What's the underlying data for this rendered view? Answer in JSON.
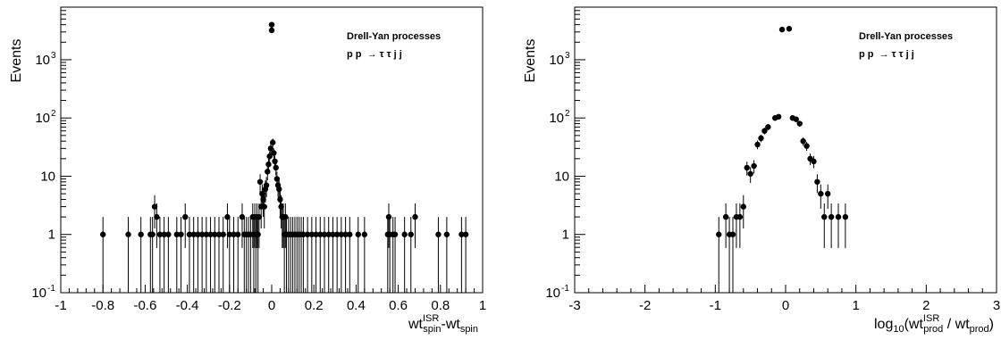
{
  "chart_data": [
    {
      "type": "scatter",
      "subtype": "histogram-with-error-bars",
      "yscale": "log",
      "ylim": [
        0.1,
        8000
      ],
      "xlim": [
        -1,
        1
      ],
      "ylabel": "Events",
      "xlabel": {
        "base": "wt",
        "sup1": "ISR",
        "sub1": "spin",
        "sep": "-wt",
        "sub2": "spin"
      },
      "legend": {
        "line1": "Drell-Yan processes",
        "line2": "p p  → τ τ j j"
      },
      "xticks": [
        {
          "value": -1,
          "label": "-1"
        },
        {
          "value": -0.8,
          "label": "-0.8"
        },
        {
          "value": -0.6,
          "label": "-0.6"
        },
        {
          "value": -0.4,
          "label": "-0.4"
        },
        {
          "value": -0.2,
          "label": "-0.2"
        },
        {
          "value": 0,
          "label": "0"
        },
        {
          "value": 0.2,
          "label": "0.2"
        },
        {
          "value": 0.4,
          "label": "0.4"
        },
        {
          "value": 0.6,
          "label": "0.6"
        },
        {
          "value": 0.8,
          "label": "0.8"
        },
        {
          "value": 1,
          "label": "1"
        }
      ],
      "yticks": [
        {
          "value": 0.1,
          "base": "10",
          "exp": "-1"
        },
        {
          "value": 1,
          "base": "1",
          "exp": ""
        },
        {
          "value": 10,
          "base": "10",
          "exp": ""
        },
        {
          "value": 100,
          "base": "10",
          "exp": "2"
        },
        {
          "value": 1000,
          "base": "10",
          "exp": "3"
        }
      ],
      "points": [
        {
          "x": -0.8,
          "y": 1
        },
        {
          "x": -0.68,
          "y": 1
        },
        {
          "x": -0.62,
          "y": 1
        },
        {
          "x": -0.575,
          "y": 1
        },
        {
          "x": -0.565,
          "y": 1
        },
        {
          "x": -0.555,
          "y": 3
        },
        {
          "x": -0.545,
          "y": 2
        },
        {
          "x": -0.53,
          "y": 1
        },
        {
          "x": -0.51,
          "y": 1
        },
        {
          "x": -0.49,
          "y": 1
        },
        {
          "x": -0.45,
          "y": 1
        },
        {
          "x": -0.43,
          "y": 1
        },
        {
          "x": -0.41,
          "y": 2
        },
        {
          "x": -0.39,
          "y": 1
        },
        {
          "x": -0.37,
          "y": 1
        },
        {
          "x": -0.35,
          "y": 1
        },
        {
          "x": -0.33,
          "y": 1
        },
        {
          "x": -0.31,
          "y": 1
        },
        {
          "x": -0.29,
          "y": 1
        },
        {
          "x": -0.27,
          "y": 1
        },
        {
          "x": -0.25,
          "y": 1
        },
        {
          "x": -0.23,
          "y": 1
        },
        {
          "x": -0.21,
          "y": 2
        },
        {
          "x": -0.2,
          "y": 1
        },
        {
          "x": -0.18,
          "y": 1
        },
        {
          "x": -0.16,
          "y": 1
        },
        {
          "x": -0.14,
          "y": 2
        },
        {
          "x": -0.13,
          "y": 1
        },
        {
          "x": -0.12,
          "y": 1
        },
        {
          "x": -0.11,
          "y": 1
        },
        {
          "x": -0.1,
          "y": 1
        },
        {
          "x": -0.09,
          "y": 2
        },
        {
          "x": -0.085,
          "y": 1
        },
        {
          "x": -0.08,
          "y": 2
        },
        {
          "x": -0.075,
          "y": 1
        },
        {
          "x": -0.07,
          "y": 2
        },
        {
          "x": -0.065,
          "y": 1
        },
        {
          "x": -0.06,
          "y": 2
        },
        {
          "x": -0.055,
          "y": 8
        },
        {
          "x": -0.05,
          "y": 3
        },
        {
          "x": -0.045,
          "y": 5
        },
        {
          "x": -0.04,
          "y": 4
        },
        {
          "x": -0.035,
          "y": 3
        },
        {
          "x": -0.03,
          "y": 6
        },
        {
          "x": -0.025,
          "y": 7
        },
        {
          "x": -0.02,
          "y": 12
        },
        {
          "x": -0.015,
          "y": 16
        },
        {
          "x": -0.01,
          "y": 22
        },
        {
          "x": -0.005,
          "y": 30
        },
        {
          "x": 0.0,
          "y": 4000
        },
        {
          "x": 0.0,
          "y": 3200
        },
        {
          "x": 0.005,
          "y": 38
        },
        {
          "x": 0.01,
          "y": 25
        },
        {
          "x": 0.015,
          "y": 18
        },
        {
          "x": 0.02,
          "y": 14
        },
        {
          "x": 0.025,
          "y": 9
        },
        {
          "x": 0.03,
          "y": 7
        },
        {
          "x": 0.035,
          "y": 6
        },
        {
          "x": 0.04,
          "y": 4
        },
        {
          "x": 0.045,
          "y": 3
        },
        {
          "x": 0.05,
          "y": 2
        },
        {
          "x": 0.055,
          "y": 2
        },
        {
          "x": 0.06,
          "y": 1
        },
        {
          "x": 0.065,
          "y": 2
        },
        {
          "x": 0.07,
          "y": 1
        },
        {
          "x": 0.08,
          "y": 1
        },
        {
          "x": 0.09,
          "y": 1
        },
        {
          "x": 0.1,
          "y": 1
        },
        {
          "x": 0.11,
          "y": 1
        },
        {
          "x": 0.12,
          "y": 1
        },
        {
          "x": 0.13,
          "y": 1
        },
        {
          "x": 0.14,
          "y": 1
        },
        {
          "x": 0.15,
          "y": 1
        },
        {
          "x": 0.17,
          "y": 1
        },
        {
          "x": 0.19,
          "y": 1
        },
        {
          "x": 0.21,
          "y": 1
        },
        {
          "x": 0.23,
          "y": 1
        },
        {
          "x": 0.25,
          "y": 1
        },
        {
          "x": 0.27,
          "y": 1
        },
        {
          "x": 0.29,
          "y": 1
        },
        {
          "x": 0.31,
          "y": 1
        },
        {
          "x": 0.33,
          "y": 1
        },
        {
          "x": 0.35,
          "y": 1
        },
        {
          "x": 0.37,
          "y": 1
        },
        {
          "x": 0.41,
          "y": 1
        },
        {
          "x": 0.44,
          "y": 1
        },
        {
          "x": 0.55,
          "y": 1
        },
        {
          "x": 0.555,
          "y": 2
        },
        {
          "x": 0.56,
          "y": 1
        },
        {
          "x": 0.575,
          "y": 1
        },
        {
          "x": 0.585,
          "y": 1
        },
        {
          "x": 0.63,
          "y": 1
        },
        {
          "x": 0.66,
          "y": 1
        },
        {
          "x": 0.68,
          "y": 2
        },
        {
          "x": 0.79,
          "y": 1
        },
        {
          "x": 0.83,
          "y": 1
        },
        {
          "x": 0.9,
          "y": 1
        },
        {
          "x": 0.92,
          "y": 1
        }
      ]
    },
    {
      "type": "scatter",
      "subtype": "histogram-with-error-bars",
      "yscale": "log",
      "ylim": [
        0.1,
        8000
      ],
      "xlim": [
        -3,
        3
      ],
      "ylabel": "Events",
      "xlabel": {
        "pre": "log",
        "sub0": "10",
        "open": "(wt",
        "sup1": "ISR",
        "sub1": "prod",
        "mid": " / wt",
        "sub2": "prod",
        "close": ")"
      },
      "legend": {
        "line1": "Drell-Yan processes",
        "line2": "p p  → τ τ j j"
      },
      "xticks": [
        {
          "value": -3,
          "label": "-3"
        },
        {
          "value": -2,
          "label": "-2"
        },
        {
          "value": -1,
          "label": "-1"
        },
        {
          "value": 0,
          "label": "0"
        },
        {
          "value": 1,
          "label": "1"
        },
        {
          "value": 2,
          "label": "2"
        },
        {
          "value": 3,
          "label": "3"
        }
      ],
      "yticks": [
        {
          "value": 0.1,
          "base": "10",
          "exp": "-1"
        },
        {
          "value": 1,
          "base": "1",
          "exp": ""
        },
        {
          "value": 10,
          "base": "10",
          "exp": ""
        },
        {
          "value": 100,
          "base": "10",
          "exp": "2"
        },
        {
          "value": 1000,
          "base": "10",
          "exp": "3"
        }
      ],
      "points": [
        {
          "x": -0.95,
          "y": 1
        },
        {
          "x": -0.85,
          "y": 2
        },
        {
          "x": -0.8,
          "y": 1
        },
        {
          "x": -0.75,
          "y": 1
        },
        {
          "x": -0.7,
          "y": 2
        },
        {
          "x": -0.65,
          "y": 2
        },
        {
          "x": -0.6,
          "y": 3
        },
        {
          "x": -0.55,
          "y": 14
        },
        {
          "x": -0.5,
          "y": 11
        },
        {
          "x": -0.45,
          "y": 15
        },
        {
          "x": -0.4,
          "y": 35
        },
        {
          "x": -0.35,
          "y": 45
        },
        {
          "x": -0.3,
          "y": 60
        },
        {
          "x": -0.25,
          "y": 70
        },
        {
          "x": -0.15,
          "y": 100
        },
        {
          "x": -0.1,
          "y": 105
        },
        {
          "x": -0.05,
          "y": 3300
        },
        {
          "x": 0.05,
          "y": 3400
        },
        {
          "x": 0.1,
          "y": 100
        },
        {
          "x": 0.15,
          "y": 95
        },
        {
          "x": 0.2,
          "y": 80
        },
        {
          "x": 0.25,
          "y": 40
        },
        {
          "x": 0.3,
          "y": 33
        },
        {
          "x": 0.35,
          "y": 20
        },
        {
          "x": 0.4,
          "y": 18
        },
        {
          "x": 0.45,
          "y": 8
        },
        {
          "x": 0.5,
          "y": 5
        },
        {
          "x": 0.55,
          "y": 2
        },
        {
          "x": 0.6,
          "y": 5
        },
        {
          "x": 0.65,
          "y": 2
        },
        {
          "x": 0.75,
          "y": 2
        },
        {
          "x": 0.85,
          "y": 2
        }
      ]
    }
  ]
}
